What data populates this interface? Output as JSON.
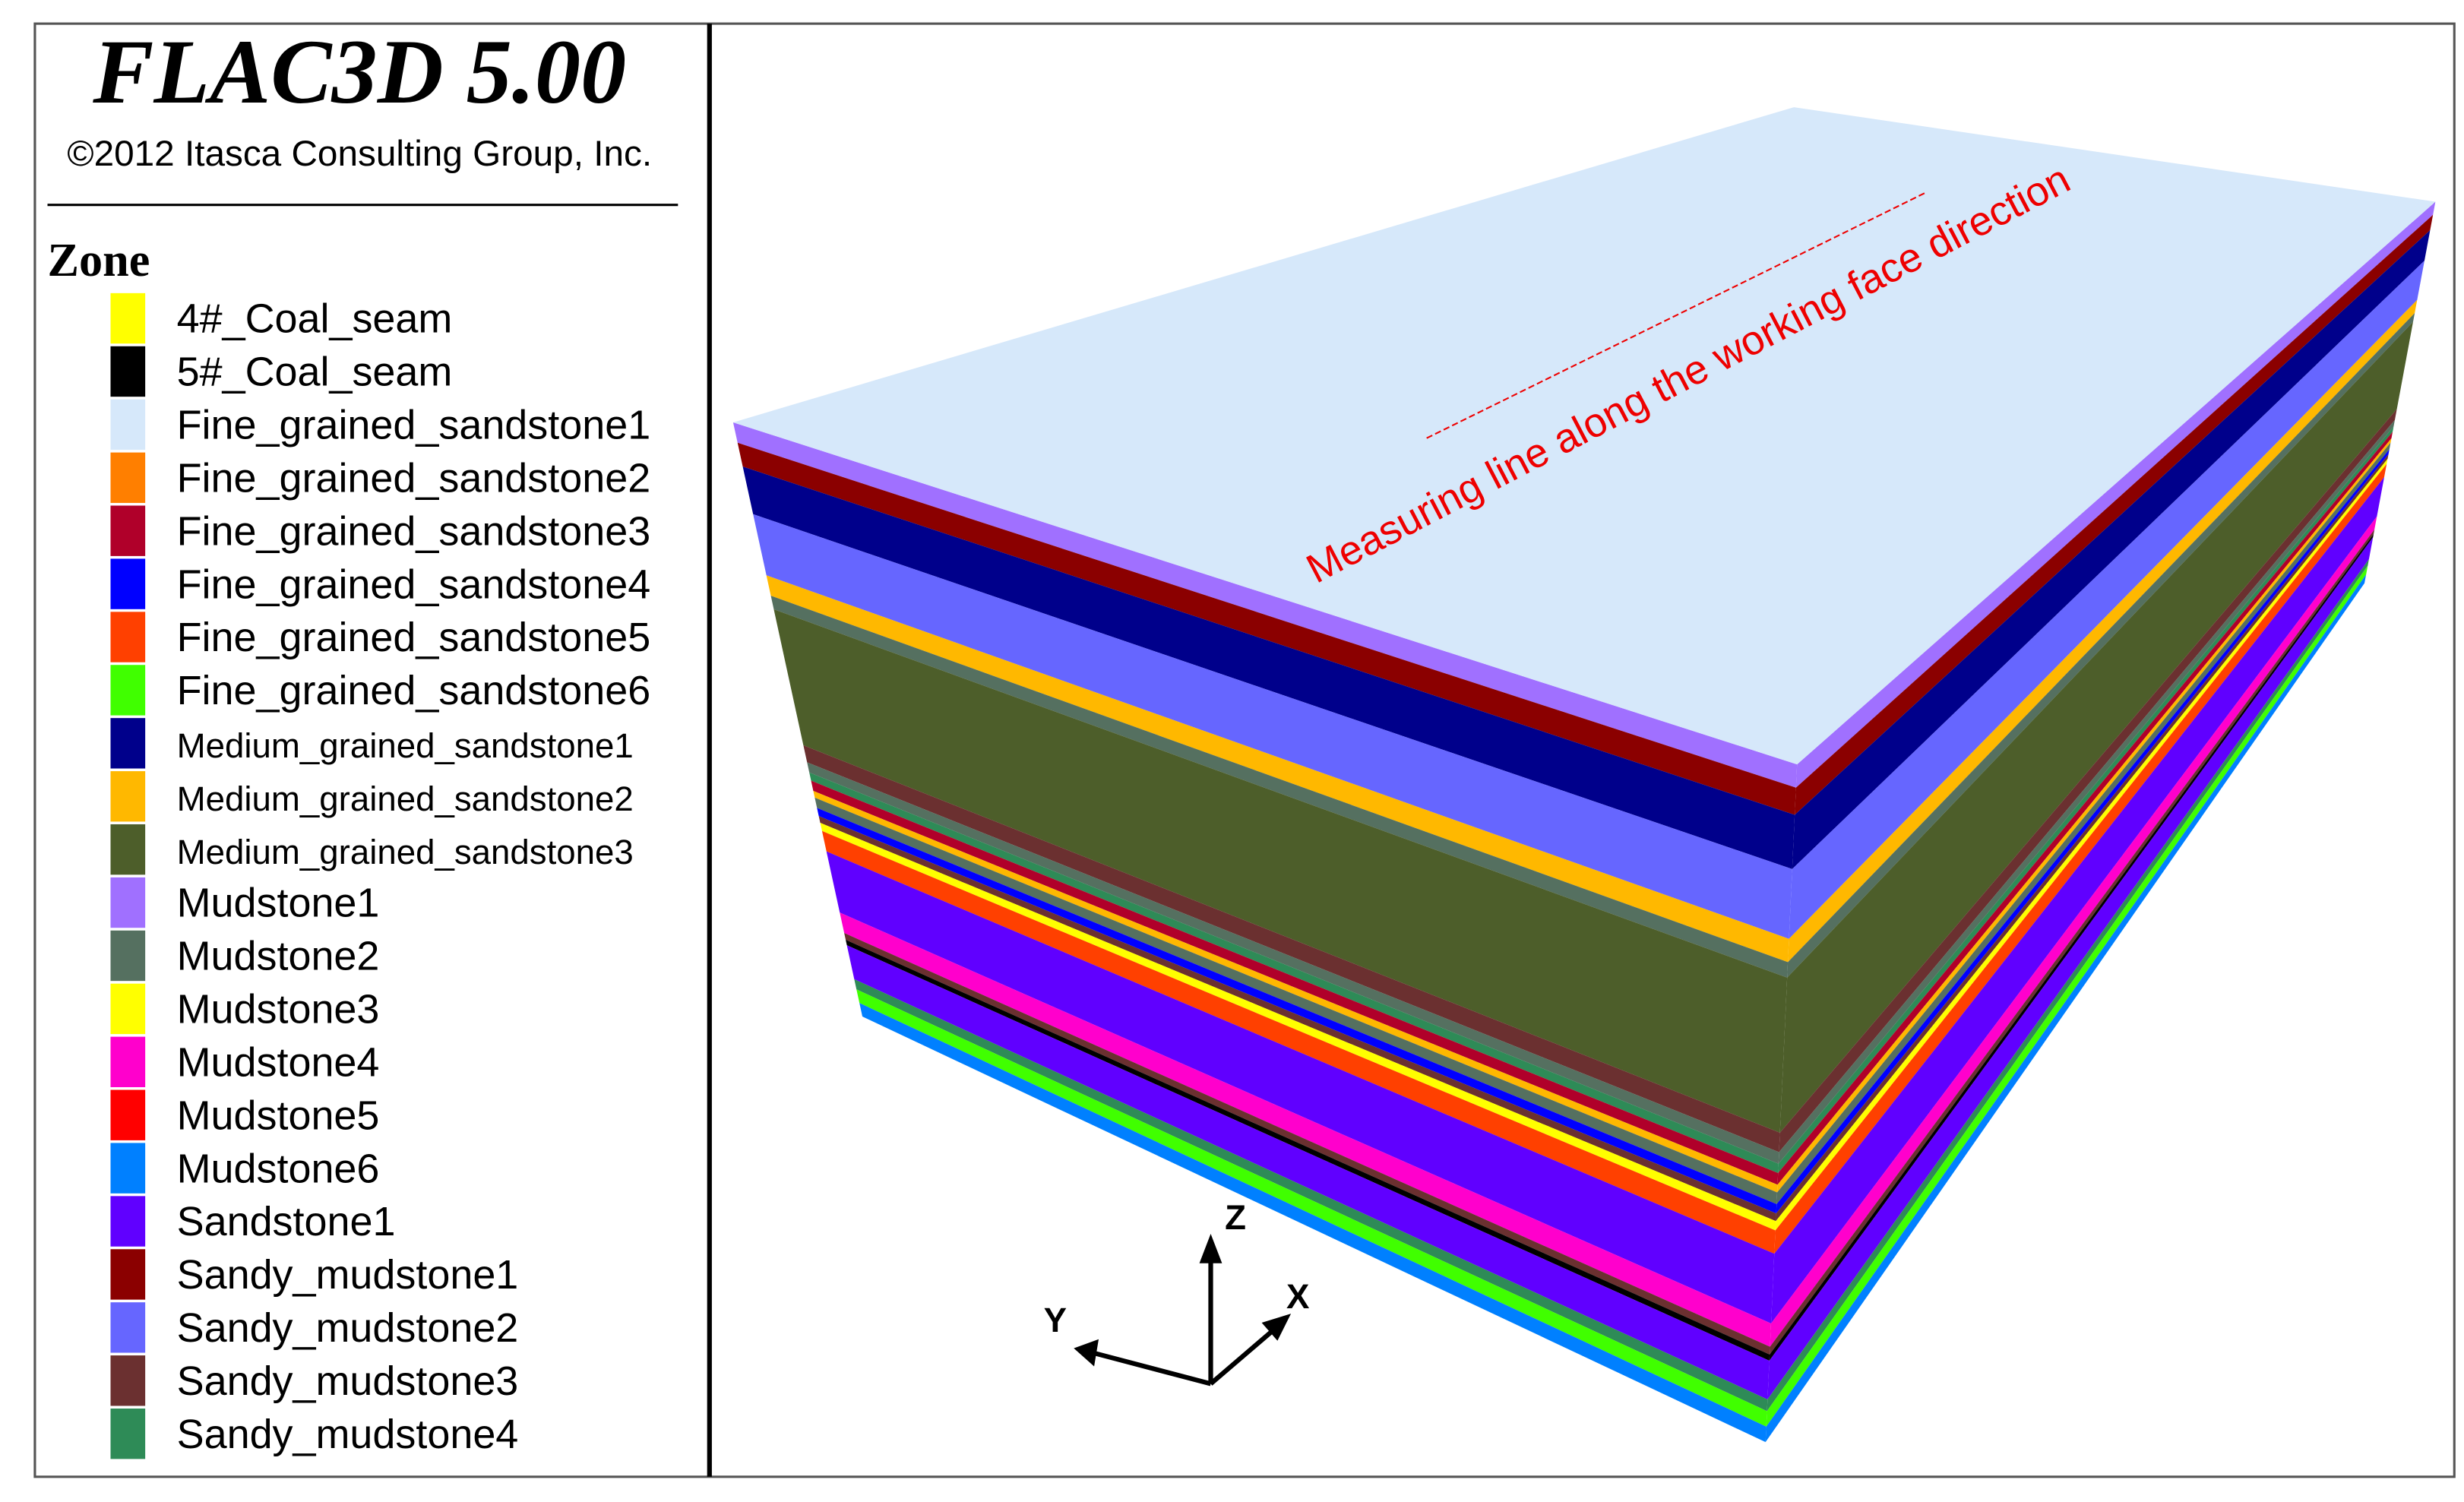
{
  "header": {
    "title": "FLAC3D 5.00",
    "copyright": "©2012 Itasca Consulting Group, Inc."
  },
  "legend": {
    "title": "Zone",
    "items": [
      {
        "name": "4#_Coal_seam",
        "color": "#ffff00"
      },
      {
        "name": "5#_Coal_seam",
        "color": "#000000"
      },
      {
        "name": "Fine_grained_sandstone1",
        "color": "#d6e8fa"
      },
      {
        "name": "Fine_grained_sandstone2",
        "color": "#ff7f00"
      },
      {
        "name": "Fine_grained_sandstone3",
        "color": "#b0002a"
      },
      {
        "name": "Fine_grained_sandstone4",
        "color": "#0000ff"
      },
      {
        "name": "Fine_grained_sandstone5",
        "color": "#ff4000"
      },
      {
        "name": "Fine_grained_sandstone6",
        "color": "#40ff00"
      },
      {
        "name": "Medium_grained_sandstone1",
        "color": "#00008b"
      },
      {
        "name": "Medium_grained_sandstone2",
        "color": "#ffb800"
      },
      {
        "name": "Medium_grained_sandstone3",
        "color": "#4d5e2a"
      },
      {
        "name": "Mudstone1",
        "color": "#a070ff"
      },
      {
        "name": "Mudstone2",
        "color": "#557060"
      },
      {
        "name": "Mudstone3",
        "color": "#ffff00"
      },
      {
        "name": "Mudstone4",
        "color": "#ff00cc"
      },
      {
        "name": "Mudstone5",
        "color": "#ff0000"
      },
      {
        "name": "Mudstone6",
        "color": "#0080ff"
      },
      {
        "name": "Sandstone1",
        "color": "#6000ff"
      },
      {
        "name": "Sandy_mudstone1",
        "color": "#8b0000"
      },
      {
        "name": "Sandy_mudstone2",
        "color": "#6666ff"
      },
      {
        "name": "Sandy_mudstone3",
        "color": "#6b3030"
      },
      {
        "name": "Sandy_mudstone4",
        "color": "#2e8b57"
      }
    ]
  },
  "model": {
    "annotation": "Measuring line along the working face direction"
  },
  "axes": {
    "z": "Z",
    "x": "X",
    "y": "Y"
  }
}
